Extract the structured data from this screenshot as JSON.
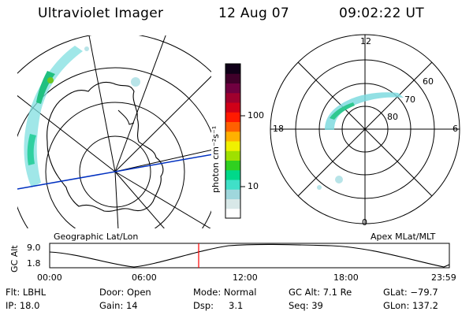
{
  "header": {
    "instrument": "Ultraviolet Imager",
    "date": "12 Aug 07",
    "time": "09:02:22 UT"
  },
  "maps": {
    "left_label": "Geographic Lat/Lon",
    "right_label": "Apex MLat/MLT",
    "polar_mlt_labels": [
      "12",
      "6",
      "0",
      "18"
    ],
    "polar_lat_labels": [
      "60",
      "70",
      "80"
    ]
  },
  "colorbar": {
    "unit_label": "photon cm⁻²s⁻¹",
    "tick_labels": [
      "100",
      "10"
    ],
    "scale": "log",
    "colors": [
      "#ffffff",
      "#d8e8e8",
      "#9fd7dc",
      "#40e0c8",
      "#00d98a",
      "#30d020",
      "#9fe000",
      "#f0f000",
      "#ffb000",
      "#ff6000",
      "#ff1a00",
      "#d00018",
      "#a0002e",
      "#700040",
      "#40002a",
      "#100018"
    ]
  },
  "altitude_plot": {
    "y_label": "GC Alt",
    "y_ticks": [
      "9.0",
      "1.8"
    ],
    "x_ticks": [
      "00:00",
      "06:00",
      "12:00",
      "18:00",
      "23:59"
    ],
    "current_time_marker_color": "#ff0000"
  },
  "info": {
    "flt": "Flt: LBHL",
    "ip": "IP: 18.0",
    "door": "Door: Open",
    "gain": "Gain: 14",
    "mode": "Mode: Normal",
    "dsp": "Dsp:",
    "dsp_value": "3.1",
    "gc_alt": "GC Alt: 7.1 Re",
    "seq": "Seq: 39",
    "glat": "GLat: −79.7",
    "glon": "GLon: 137.2"
  }
}
